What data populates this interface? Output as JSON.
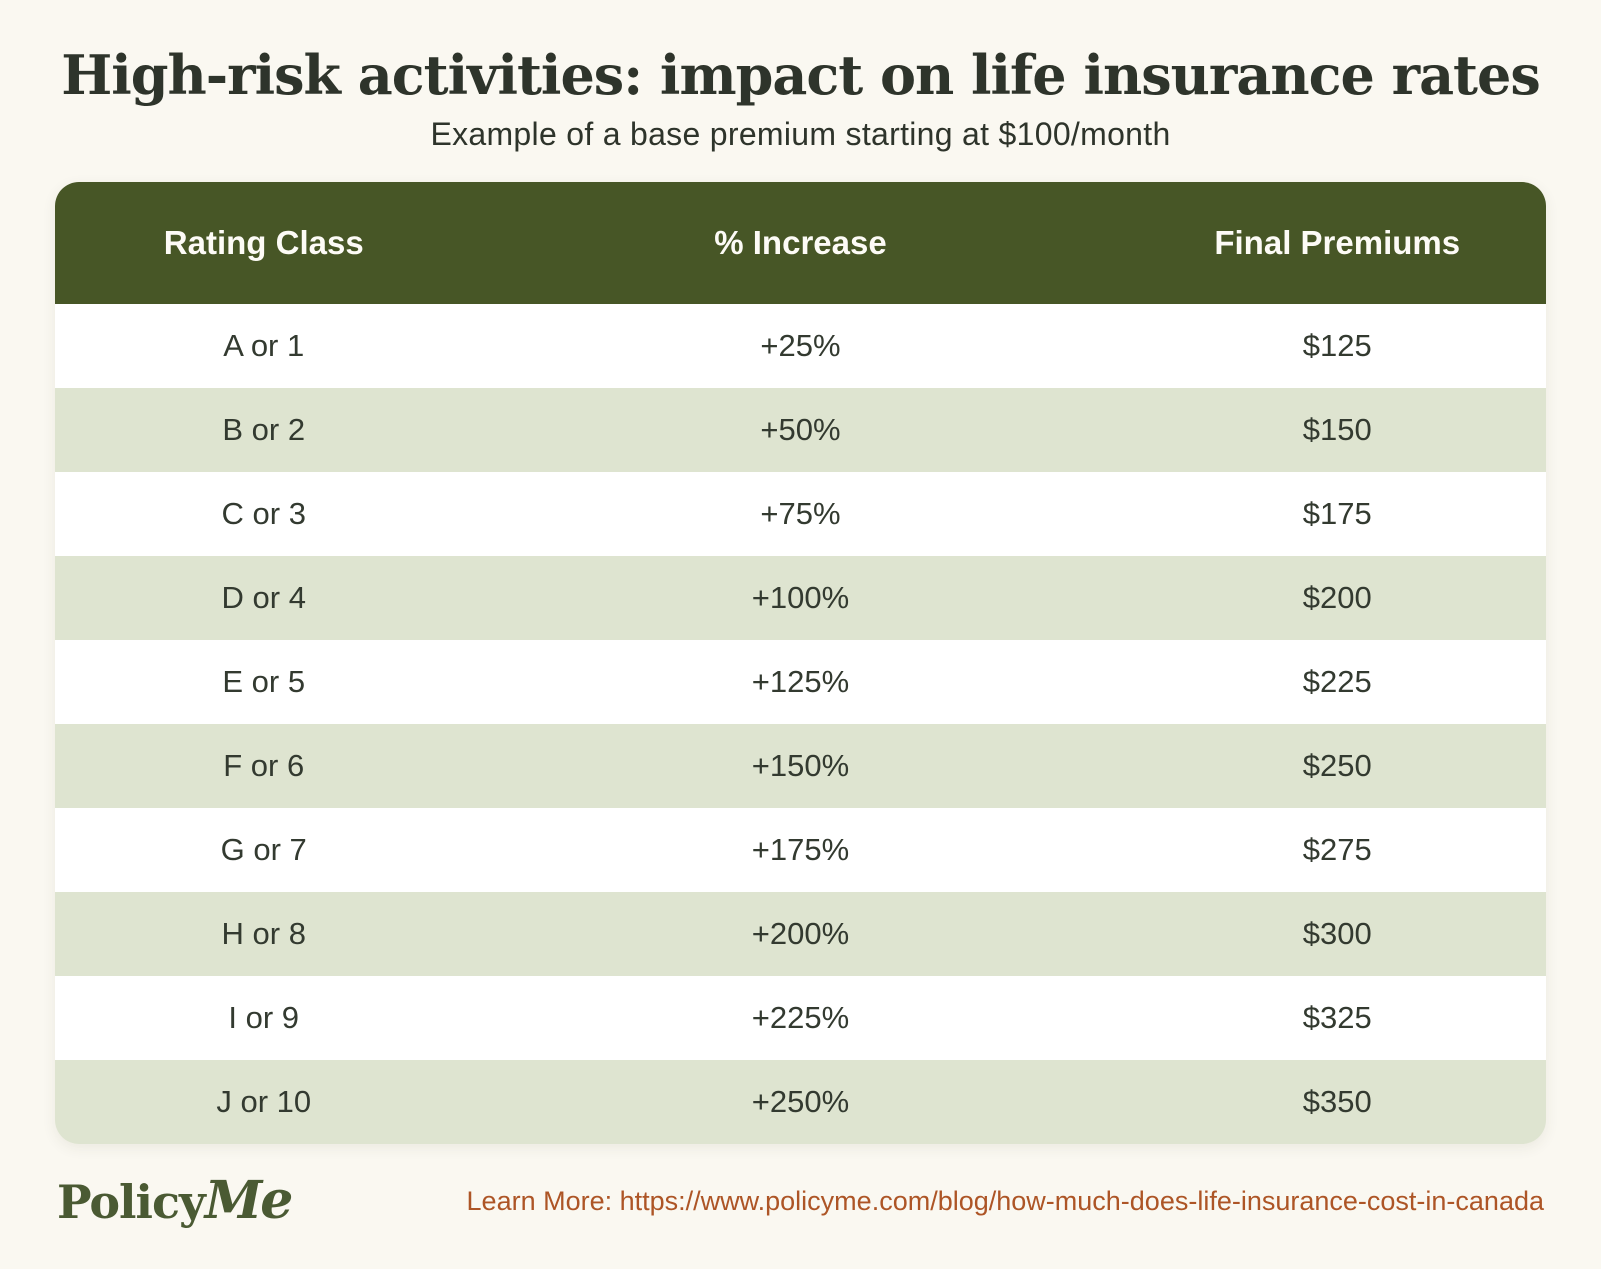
{
  "title": "High-risk activities: impact on life insurance rates",
  "subtitle": "Example of a base premium starting at $100/month",
  "table": {
    "headers": [
      "Rating Class",
      "% Increase",
      "Final Premiums"
    ],
    "rows": [
      [
        "A or 1",
        "+25%",
        "$125"
      ],
      [
        "B or 2",
        "+50%",
        "$150"
      ],
      [
        "C or 3",
        "+75%",
        "$175"
      ],
      [
        "D or 4",
        "+100%",
        "$200"
      ],
      [
        "E or 5",
        "+125%",
        "$225"
      ],
      [
        "F or 6",
        "+150%",
        "$250"
      ],
      [
        "G or 7",
        "+175%",
        "$275"
      ],
      [
        "H or 8",
        "+200%",
        "$300"
      ],
      [
        "I or 9",
        "+225%",
        "$325"
      ],
      [
        "J or 10",
        "+250%",
        "$350"
      ]
    ]
  },
  "footer": {
    "logo": {
      "policy": "Policy",
      "me": "Me"
    },
    "learn_more": "Learn More: https://www.policyme.com/blog/how-much-does-life-insurance-cost-in-canada"
  },
  "colors": {
    "background": "#faf8f1",
    "header_green": "#475626",
    "row_alt_green": "#dee4d0",
    "row_white": "#ffffff",
    "title_text": "#2e342b",
    "cell_text": "#333a30",
    "header_text": "#fdfbf6",
    "link_orange": "#ad5526",
    "logo_green": "#4a5a33"
  },
  "chart_data": {
    "type": "table",
    "title": "High-risk activities: impact on life insurance rates",
    "subtitle": "Example of a base premium starting at $100/month",
    "base_premium_per_month": 100,
    "columns": [
      "Rating Class",
      "% Increase",
      "Final Premiums"
    ],
    "rating_classes": [
      "A or 1",
      "B or 2",
      "C or 3",
      "D or 4",
      "E or 5",
      "F or 6",
      "G or 7",
      "H or 8",
      "I or 9",
      "J or 10"
    ],
    "increase_percent": [
      25,
      50,
      75,
      100,
      125,
      150,
      175,
      200,
      225,
      250
    ],
    "final_premiums_dollars": [
      125,
      150,
      175,
      200,
      225,
      250,
      275,
      300,
      325,
      350
    ]
  }
}
